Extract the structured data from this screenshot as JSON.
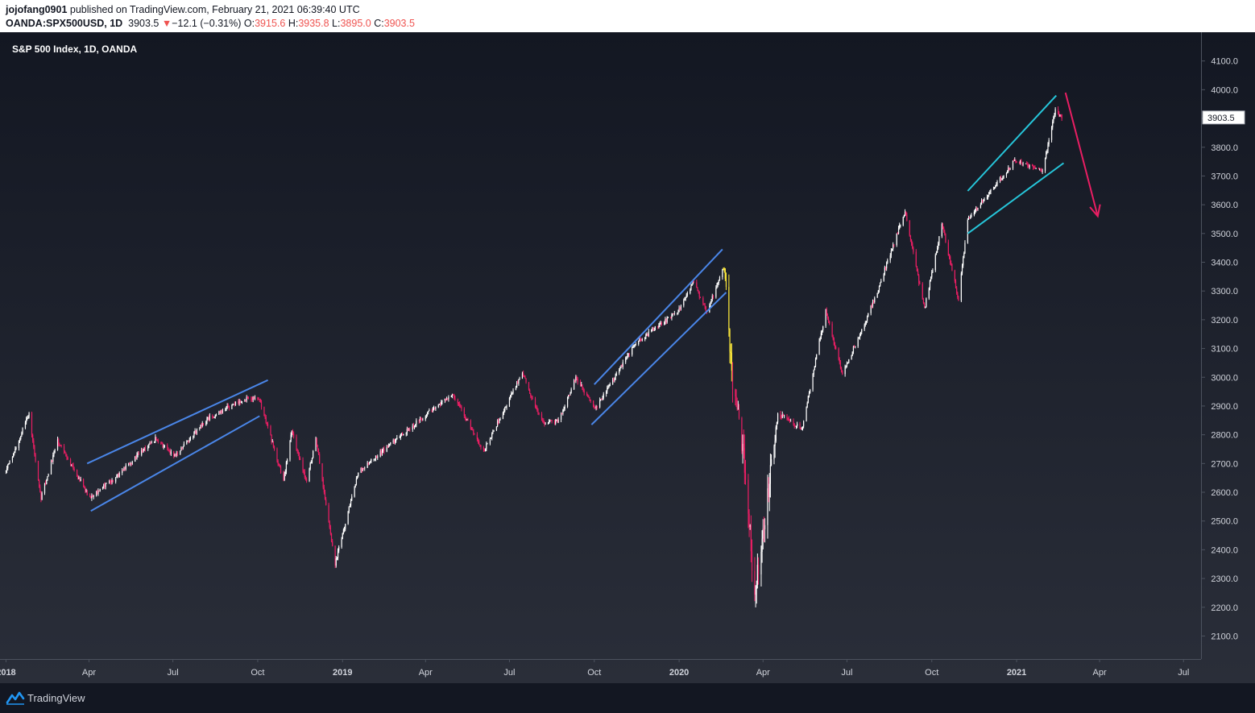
{
  "header": {
    "publisher": "jojofang0901",
    "published_text": "published on TradingView.com, February 21, 2021 06:39:40 UTC",
    "symbol": "OANDA:SPX500USD, 1D",
    "last": "3903.5",
    "change_arrow": "▼",
    "change": "−12.1 (−0.31%)",
    "open_label": "O:",
    "open": "3915.6",
    "high_label": "H:",
    "high": "3935.8",
    "low_label": "L:",
    "low": "3895.0",
    "close_label": "C:",
    "close": "3903.5"
  },
  "footer": {
    "brand": "TradingView",
    "brand_icon": "tradingview-logo-icon"
  },
  "colors": {
    "background_top": "#131722",
    "background_bottom": "#2a2e39",
    "candle_up": "#ffffff",
    "candle_down": "#e91e63",
    "candle_highlight": "#ffeb3b",
    "channel_line": "#4a86e8",
    "wedge_line": "#26c6da",
    "arrow": "#e91e63",
    "axis_text": "#d1d4dc"
  },
  "chart_data": {
    "type": "candlestick",
    "title": "S&P 500 Index, 1D, OANDA",
    "last_price_label": "3903.5",
    "y_axis": {
      "ticks": [
        2100,
        2200,
        2300,
        2400,
        2500,
        2600,
        2700,
        2800,
        2900,
        3000,
        3100,
        3200,
        3300,
        3400,
        3500,
        3600,
        3700,
        3800,
        3900,
        4000,
        4100
      ],
      "ylim": [
        2020,
        4200
      ],
      "position": "right"
    },
    "x_axis": {
      "range": [
        "2017-12-29",
        "2021-07-20"
      ],
      "ticks": [
        {
          "date": "2018-01-01",
          "label": "2018",
          "major": true
        },
        {
          "date": "2018-04-01",
          "label": "Apr"
        },
        {
          "date": "2018-07-01",
          "label": "Jul"
        },
        {
          "date": "2018-10-01",
          "label": "Oct"
        },
        {
          "date": "2019-01-01",
          "label": "2019",
          "major": true
        },
        {
          "date": "2019-04-01",
          "label": "Apr"
        },
        {
          "date": "2019-07-01",
          "label": "Jul"
        },
        {
          "date": "2019-10-01",
          "label": "Oct"
        },
        {
          "date": "2020-01-01",
          "label": "2020",
          "major": true
        },
        {
          "date": "2020-04-01",
          "label": "Apr"
        },
        {
          "date": "2020-07-01",
          "label": "Jul"
        },
        {
          "date": "2020-10-01",
          "label": "Oct"
        },
        {
          "date": "2021-01-01",
          "label": "2021",
          "major": true
        },
        {
          "date": "2021-04-01",
          "label": "Apr"
        },
        {
          "date": "2021-07-01",
          "label": "Jul"
        }
      ]
    },
    "price_path": [
      [
        "2018-01-01",
        2673
      ],
      [
        "2018-01-26",
        2872
      ],
      [
        "2018-02-08",
        2581
      ],
      [
        "2018-02-26",
        2780
      ],
      [
        "2018-04-02",
        2581
      ],
      [
        "2018-05-01",
        2655
      ],
      [
        "2018-06-12",
        2786
      ],
      [
        "2018-07-02",
        2726
      ],
      [
        "2018-08-08",
        2857
      ],
      [
        "2018-09-20",
        2930
      ],
      [
        "2018-10-03",
        2925
      ],
      [
        "2018-10-29",
        2640
      ],
      [
        "2018-11-07",
        2813
      ],
      [
        "2018-11-23",
        2632
      ],
      [
        "2018-12-03",
        2790
      ],
      [
        "2018-12-24",
        2351
      ],
      [
        "2019-01-18",
        2670
      ],
      [
        "2019-02-28",
        2784
      ],
      [
        "2019-04-30",
        2945
      ],
      [
        "2019-06-03",
        2744
      ],
      [
        "2019-07-15",
        3014
      ],
      [
        "2019-08-05",
        2844
      ],
      [
        "2019-08-23",
        2847
      ],
      [
        "2019-09-11",
        3000
      ],
      [
        "2019-10-02",
        2887
      ],
      [
        "2019-11-15",
        3120
      ],
      [
        "2019-12-31",
        3230
      ],
      [
        "2020-01-17",
        3329
      ],
      [
        "2020-01-31",
        3225
      ],
      [
        "2020-02-19",
        3386
      ],
      [
        "2020-02-28",
        2954
      ],
      [
        "2020-03-11",
        2741
      ],
      [
        "2020-03-23",
        2237
      ],
      [
        "2020-04-17",
        2875
      ],
      [
        "2020-05-13",
        2820
      ],
      [
        "2020-06-08",
        3232
      ],
      [
        "2020-06-26",
        3009
      ],
      [
        "2020-07-31",
        3271
      ],
      [
        "2020-09-02",
        3580
      ],
      [
        "2020-09-23",
        3237
      ],
      [
        "2020-10-12",
        3534
      ],
      [
        "2020-10-30",
        3270
      ],
      [
        "2020-11-09",
        3550
      ],
      [
        "2020-12-31",
        3756
      ],
      [
        "2021-01-29",
        3714
      ],
      [
        "2021-02-12",
        3934
      ],
      [
        "2021-02-19",
        3903.5
      ]
    ],
    "drawings": [
      {
        "kind": "channel",
        "upper": [
          [
            "2018-03-30",
            2700
          ],
          [
            "2018-10-12",
            2990
          ]
        ],
        "lower": [
          [
            "2018-04-03",
            2535
          ],
          [
            "2018-10-03",
            2865
          ]
        ]
      },
      {
        "kind": "channel",
        "upper": [
          [
            "2019-10-01",
            2975
          ],
          [
            "2020-02-17",
            3445
          ]
        ],
        "lower": [
          [
            "2019-09-28",
            2835
          ],
          [
            "2020-02-21",
            3295
          ]
        ]
      },
      {
        "kind": "wedge",
        "upper": [
          [
            "2020-11-09",
            3648
          ],
          [
            "2021-02-13",
            3980
          ]
        ],
        "lower": [
          [
            "2020-11-09",
            3500
          ],
          [
            "2021-02-21",
            3745
          ]
        ]
      },
      {
        "kind": "arrow",
        "from": [
          "2021-02-23",
          3990
        ],
        "to": [
          "2021-03-30",
          3560
        ]
      }
    ]
  }
}
